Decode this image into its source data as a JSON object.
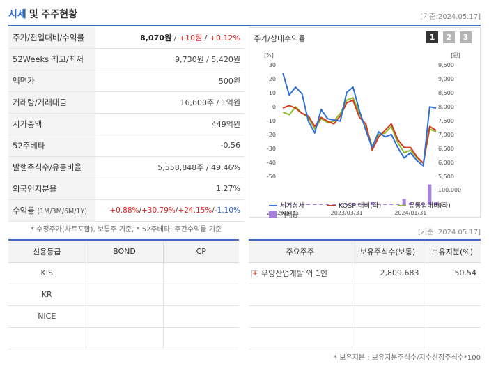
{
  "header": {
    "title_main": "시세",
    "title_rest": "및 주주현황",
    "date": "[기준:2024.05.17]"
  },
  "info_rows": [
    {
      "key": "주가/전일대비/수익률",
      "price": "8,070원",
      "sep1": " / ",
      "change": "+10원",
      "sep2": " / ",
      "rate": "+0.12%"
    },
    {
      "key": "52Weeks 최고/최저",
      "value": "9,730원 / 5,420원"
    },
    {
      "key": "액면가",
      "value": "500원"
    },
    {
      "key": "거래량/거래대금",
      "value": "16,600주 / 1억원"
    },
    {
      "key": "시가총액",
      "value": "449억원"
    },
    {
      "key": "52주베타",
      "value": "-0.56"
    },
    {
      "key": "발행주식수/유동비율",
      "value": "5,558,848주 / 49.46%"
    },
    {
      "key": "외국인지분율",
      "value": "1.27%"
    },
    {
      "key": "수익률",
      "key_small": "(1M/3M/6M/1Y)",
      "r1": "+0.88%",
      "r2": "+30.79%",
      "r3": "+24.15%",
      "r4": "-1.10%",
      "sep": "/"
    }
  ],
  "notes": {
    "note1": "* 수정주가(차트포함), 보통주 기준, * 52주베타: 주간수익률 기준",
    "note2": "[기준: 2024.05.17]",
    "note3": "* 보유지분 : 보유지분주식수/지수산정주식수*100"
  },
  "chart": {
    "title": "주가/상대수익률",
    "pages": [
      "1",
      "2",
      "3"
    ],
    "left_unit": "[%]",
    "right_unit": "[원]",
    "colors": {
      "stock": "#2f6fd6",
      "kospi": "#d23a1e",
      "industry": "#8cba2a",
      "volume": "#a47fdc"
    },
    "left_ticks": [
      "30",
      "20",
      "10",
      "0",
      "-10",
      "-20",
      "-30",
      "-40",
      "-50"
    ],
    "right_ticks": [
      "9,500",
      "9,000",
      "8,500",
      "8,000",
      "7,500",
      "7,000",
      "6,500",
      "6,000",
      "5,500"
    ],
    "vol_ticks": [
      "100,000",
      "0"
    ],
    "x_ticks": [
      "2022/05/31",
      "2023/03/31",
      "2024/01/31"
    ],
    "legend": [
      "세기상사",
      "KOSPI대비(좌)",
      "유통업대비(좌)",
      "거래량"
    ]
  },
  "chart_data": {
    "type": "line",
    "x": [
      "2022/05/31",
      "2022/06",
      "2022/07",
      "2022/08",
      "2022/09",
      "2022/10",
      "2022/11",
      "2022/12",
      "2023/01",
      "2023/02",
      "2023/03/31",
      "2023/04",
      "2023/05",
      "2023/06",
      "2023/07",
      "2023/08",
      "2023/09",
      "2023/10",
      "2023/11",
      "2023/12",
      "2024/01/31",
      "2024/02",
      "2024/03",
      "2024/04",
      "2024/05"
    ],
    "series": [
      {
        "name": "세기상사",
        "axis": "left",
        "values": [
          29,
          12,
          18,
          13,
          -8,
          -17,
          1,
          -6,
          -7,
          -8,
          14,
          18,
          0,
          -15,
          -28,
          -16,
          -20,
          -18,
          -28,
          -36,
          -32,
          -38,
          -42,
          3,
          2
        ]
      },
      {
        "name": "KOSPI대비(좌)",
        "axis": "left",
        "values": [
          2,
          4,
          2,
          -2,
          -4,
          -12,
          -5,
          -8,
          -10,
          -4,
          6,
          8,
          -5,
          -10,
          -30,
          -20,
          -15,
          -10,
          -22,
          -28,
          -28,
          -35,
          -40,
          -12,
          -15
        ]
      },
      {
        "name": "유통업대비(좌)",
        "axis": "left",
        "values": [
          -1,
          -3,
          3,
          -2,
          -5,
          -14,
          -6,
          -9,
          -8,
          -2,
          8,
          10,
          -2,
          -12,
          -27,
          -18,
          -17,
          -12,
          -24,
          -32,
          -30,
          -36,
          -40,
          -14,
          -16
        ]
      },
      {
        "name": "거래량",
        "axis": "volume",
        "values": [
          10000,
          12000,
          11000,
          9000,
          12000,
          10000,
          8000,
          9000,
          10000,
          9000,
          12000,
          13000,
          10000,
          9000,
          25000,
          9000,
          8000,
          10000,
          12000,
          55000,
          20000,
          15000,
          18000,
          190000,
          25000
        ]
      }
    ],
    "ylim_left": [
      -50,
      35
    ],
    "ylim_right": [
      5500,
      9500
    ],
    "ylim_volume": [
      0,
      200000
    ]
  },
  "credit": {
    "headers": [
      "신용등급",
      "BOND",
      "CP"
    ],
    "rows": [
      [
        "KIS",
        "",
        ""
      ],
      [
        "KR",
        "",
        ""
      ],
      [
        "NICE",
        "",
        ""
      ],
      [
        "",
        "",
        ""
      ]
    ]
  },
  "holders": {
    "headers": [
      "주요주주",
      "보유주식수(보통)",
      "보유지분(%)"
    ],
    "rows": [
      {
        "name": "우양산업개발 외 1인",
        "shares": "2,809,683",
        "pct": "50.54"
      },
      {
        "name": "",
        "shares": "",
        "pct": ""
      },
      {
        "name": "",
        "shares": "",
        "pct": ""
      },
      {
        "name": "",
        "shares": "",
        "pct": ""
      }
    ]
  }
}
